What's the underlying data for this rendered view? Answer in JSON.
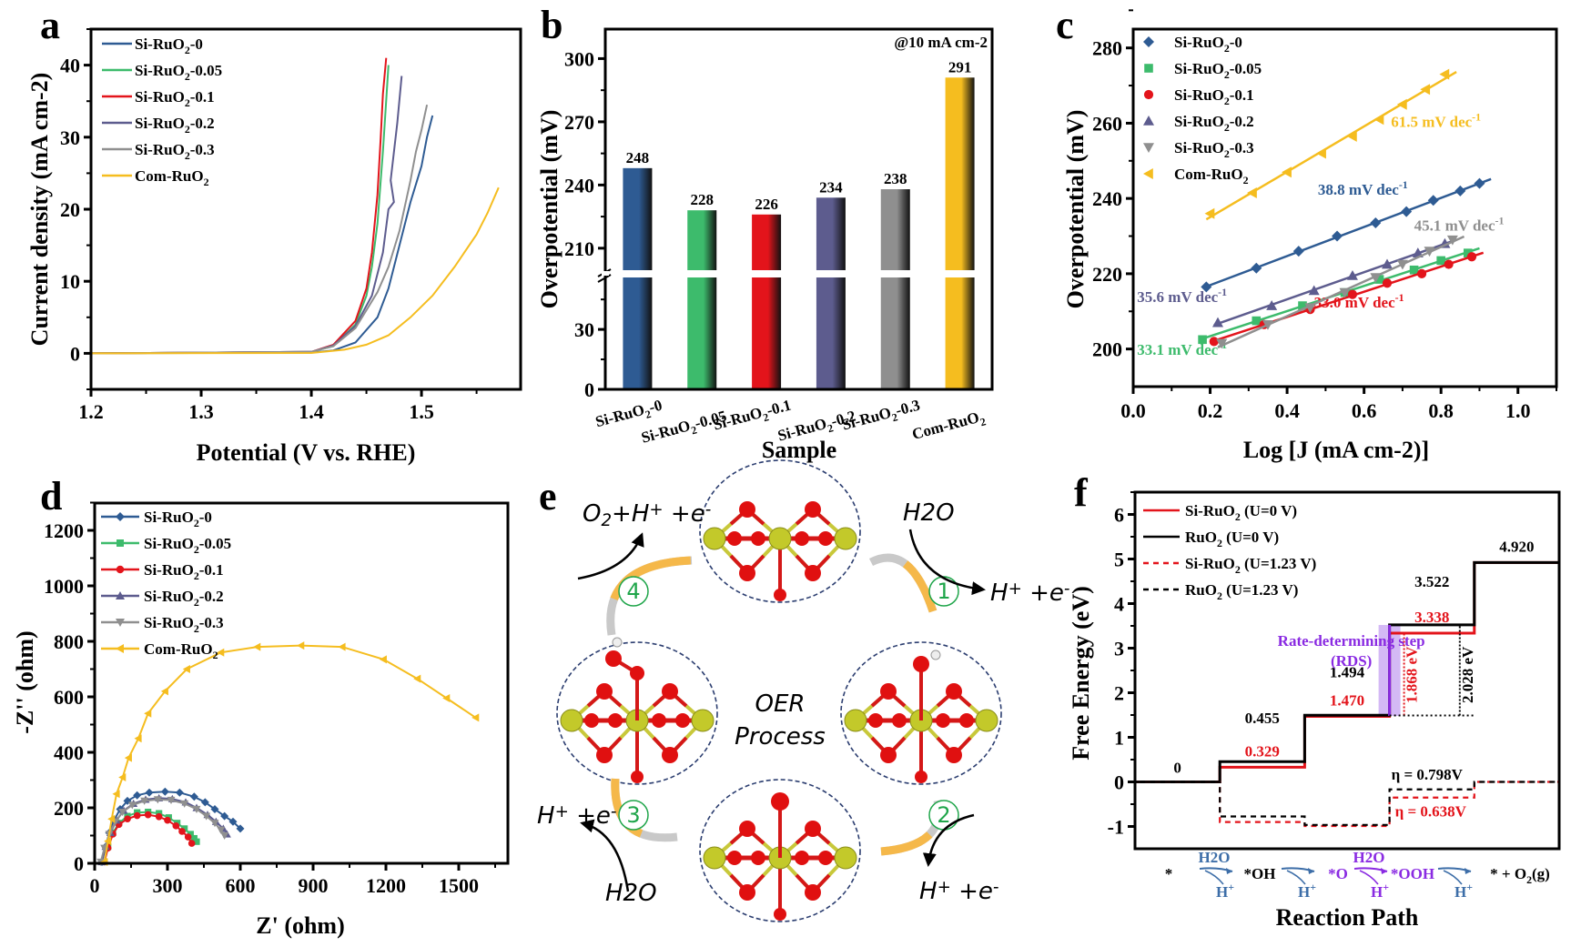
{
  "figure": {
    "panels": [
      "a",
      "b",
      "c",
      "d",
      "e",
      "f"
    ]
  },
  "series_colors": {
    "Si-RuO2-0": "#2e5b93",
    "Si-RuO2-0.05": "#3dbb6c",
    "Si-RuO2-0.1": "#e3141b",
    "Si-RuO2-0.2": "#5d5c8e",
    "Si-RuO2-0.3": "#8f8f8f",
    "Com-RuO2": "#f5bd1f"
  },
  "chart_data": [
    {
      "id": "a",
      "type": "line",
      "panel_label": "a",
      "title": "",
      "xlabel": "Potential (V vs. RHE)",
      "ylabel": "Current density (mA cm-2)",
      "xlim": [
        1.2,
        1.59
      ],
      "ylim": [
        -5,
        45
      ],
      "xticks": [
        "1.2",
        "1.3",
        "1.4",
        "1.5"
      ],
      "xtick_values": [
        1.2,
        1.3,
        1.4,
        1.5
      ],
      "yticks": [
        "0",
        "10",
        "20",
        "30",
        "40"
      ],
      "ytick_values": [
        0,
        10,
        20,
        30,
        40
      ],
      "legend": "top-left",
      "series": [
        {
          "name": "Si-RuO2-0",
          "x": [
            1.2,
            1.4,
            1.42,
            1.44,
            1.46,
            1.47,
            1.48,
            1.49,
            1.5,
            1.505,
            1.51
          ],
          "y": [
            0,
            0.1,
            0.4,
            1.5,
            5,
            9,
            15,
            21,
            26,
            30,
            33
          ]
        },
        {
          "name": "Si-RuO2-0.05",
          "x": [
            1.2,
            1.4,
            1.42,
            1.44,
            1.45,
            1.455,
            1.46,
            1.465,
            1.47
          ],
          "y": [
            0,
            0.2,
            1,
            4,
            8,
            12,
            18,
            28,
            40
          ]
        },
        {
          "name": "Si-RuO2-0.1",
          "x": [
            1.2,
            1.4,
            1.42,
            1.44,
            1.45,
            1.455,
            1.46,
            1.463,
            1.465,
            1.468
          ],
          "y": [
            0,
            0.2,
            1.2,
            4.5,
            9,
            14,
            22,
            30,
            36,
            41
          ]
        },
        {
          "name": "Si-RuO2-0.2",
          "x": [
            1.2,
            1.4,
            1.42,
            1.44,
            1.455,
            1.465,
            1.47,
            1.475,
            1.472,
            1.478,
            1.482
          ],
          "y": [
            0,
            0.2,
            1.1,
            3.8,
            8,
            14,
            20,
            21,
            24,
            32,
            38.5
          ]
        },
        {
          "name": "Si-RuO2-0.3",
          "x": [
            1.2,
            1.4,
            1.42,
            1.44,
            1.46,
            1.47,
            1.48,
            1.49,
            1.495,
            1.5,
            1.505
          ],
          "y": [
            0,
            0.2,
            1.0,
            3.5,
            8.5,
            12,
            17,
            24,
            28,
            31,
            34.5
          ]
        },
        {
          "name": "Com-RuO2",
          "x": [
            1.2,
            1.4,
            1.43,
            1.45,
            1.47,
            1.49,
            1.51,
            1.53,
            1.55,
            1.56,
            1.57
          ],
          "y": [
            0,
            0.05,
            0.5,
            1.2,
            2.5,
            5,
            8,
            12,
            16.5,
            19.5,
            23
          ]
        }
      ]
    },
    {
      "id": "b",
      "type": "bar",
      "panel_label": "b",
      "title": "",
      "annotation": "@10 mA cm-2",
      "xlabel": "Sample",
      "ylabel": "Overpotential (mV)",
      "categories": [
        "Si-RuO2-0",
        "Si-RuO2-0.05",
        "Si-RuO2-0.1",
        "Si-RuO2-0.2",
        "Si-RuO2-0.3",
        "Com-RuO2"
      ],
      "values": [
        248,
        228,
        226,
        234,
        238,
        291
      ],
      "data_labels": [
        "248",
        "228",
        "226",
        "234",
        "238",
        "291"
      ],
      "y_break": [
        56,
        200
      ],
      "ylim": [
        0,
        314
      ],
      "yticks": [
        "0",
        "30",
        "210",
        "240",
        "270",
        "300"
      ],
      "ytick_values": [
        0,
        30,
        210,
        240,
        270,
        300
      ]
    },
    {
      "id": "c",
      "type": "scatter",
      "panel_label": "c",
      "title": "",
      "xlabel": "Log [J (mA cm-2)]",
      "ylabel": "Overpotential (mV)",
      "xlim": [
        0.0,
        1.1
      ],
      "ylim": [
        190,
        285
      ],
      "xticks": [
        "0.0",
        "0.2",
        "0.4",
        "0.6",
        "0.8",
        "1.0"
      ],
      "xtick_values": [
        0.0,
        0.2,
        0.4,
        0.6,
        0.8,
        1.0
      ],
      "yticks": [
        "200",
        "220",
        "240",
        "260",
        "280"
      ],
      "ytick_values": [
        200,
        220,
        240,
        260,
        280
      ],
      "legend": "top-left",
      "series": [
        {
          "name": "Si-RuO2-0",
          "marker": "diamond",
          "slope_label": "38.8 mV dec-1",
          "x": [
            0.19,
            0.32,
            0.43,
            0.53,
            0.63,
            0.71,
            0.78,
            0.85,
            0.9
          ],
          "y": [
            216.5,
            221.5,
            226,
            230,
            233.5,
            236.5,
            239.5,
            242,
            244
          ]
        },
        {
          "name": "Si-RuO2-0.05",
          "marker": "square",
          "slope_label": "33.1 mV dec-1",
          "x": [
            0.18,
            0.32,
            0.44,
            0.55,
            0.64,
            0.73,
            0.8,
            0.87
          ],
          "y": [
            202.5,
            207.5,
            211.5,
            215,
            218.5,
            221,
            223.5,
            225.5
          ]
        },
        {
          "name": "Si-RuO2-0.1",
          "marker": "circle",
          "slope_label": "33.0 mV dec-1",
          "x": [
            0.21,
            0.34,
            0.46,
            0.57,
            0.66,
            0.75,
            0.82,
            0.88
          ],
          "y": [
            202,
            206.5,
            210.5,
            214.5,
            217.5,
            220,
            222.5,
            224.5
          ]
        },
        {
          "name": "Si-RuO2-0.2",
          "marker": "triangle-up",
          "slope_label": "35.6 mV dec-1",
          "x": [
            0.22,
            0.36,
            0.47,
            0.57,
            0.66,
            0.74,
            0.81
          ],
          "y": [
            207,
            211.5,
            215.5,
            219.5,
            222.5,
            225.5,
            228
          ]
        },
        {
          "name": "Si-RuO2-0.3",
          "marker": "triangle-down",
          "slope_label": "45.1 mV dec-1",
          "x": [
            0.23,
            0.35,
            0.46,
            0.55,
            0.63,
            0.7,
            0.77,
            0.83
          ],
          "y": [
            201.5,
            206.5,
            211,
            215,
            219,
            222.5,
            226,
            229
          ]
        },
        {
          "name": "Com-RuO2",
          "marker": "triangle-left",
          "slope_label": "61.5 mV dec-1",
          "x": [
            0.2,
            0.31,
            0.4,
            0.49,
            0.57,
            0.64,
            0.7,
            0.76,
            0.81
          ],
          "y": [
            236,
            241.5,
            247,
            252,
            256.5,
            261,
            265,
            269,
            273
          ]
        }
      ]
    },
    {
      "id": "d",
      "type": "line",
      "panel_label": "d",
      "title": "",
      "xlabel": "Z' (ohm)",
      "ylabel": "-Z'' (ohm)",
      "xlim": [
        0,
        1700
      ],
      "ylim": [
        0,
        1300
      ],
      "xticks": [
        "0",
        "300",
        "600",
        "900",
        "1200",
        "1500"
      ],
      "xtick_values": [
        0,
        300,
        600,
        900,
        1200,
        1500
      ],
      "yticks": [
        "0",
        "200",
        "400",
        "600",
        "800",
        "1000",
        "1200"
      ],
      "ytick_values": [
        0,
        200,
        400,
        600,
        800,
        1000,
        1200
      ],
      "legend": "top-left",
      "series": [
        {
          "name": "Si-RuO2-0",
          "marker": "diamond",
          "x": [
            30,
            45,
            60,
            80,
            105,
            135,
            175,
            225,
            290,
            350,
            410,
            455,
            495,
            535,
            570,
            600
          ],
          "y": [
            5,
            60,
            110,
            155,
            195,
            225,
            245,
            255,
            258,
            255,
            240,
            220,
            195,
            170,
            150,
            125
          ]
        },
        {
          "name": "Si-RuO2-0.05",
          "marker": "square",
          "x": [
            40,
            55,
            75,
            100,
            135,
            175,
            220,
            265,
            305,
            340,
            370,
            395,
            410,
            420
          ],
          "y": [
            5,
            60,
            110,
            145,
            170,
            183,
            185,
            180,
            165,
            145,
            125,
            105,
            90,
            78
          ]
        },
        {
          "name": "Si-RuO2-0.1",
          "marker": "circle",
          "x": [
            40,
            55,
            75,
            100,
            135,
            175,
            220,
            265,
            300,
            335,
            360,
            385,
            400
          ],
          "y": [
            5,
            55,
            105,
            140,
            160,
            172,
            175,
            168,
            155,
            135,
            115,
            95,
            72
          ]
        },
        {
          "name": "Si-RuO2-0.2",
          "marker": "triangle-up",
          "x": [
            30,
            45,
            65,
            90,
            120,
            160,
            210,
            265,
            320,
            375,
            420,
            465,
            500,
            530,
            545
          ],
          "y": [
            5,
            60,
            110,
            155,
            190,
            215,
            230,
            235,
            232,
            220,
            200,
            175,
            150,
            125,
            105
          ]
        },
        {
          "name": "Si-RuO2-0.3",
          "marker": "triangle-down",
          "x": [
            25,
            40,
            60,
            85,
            115,
            155,
            205,
            260,
            315,
            370,
            420,
            460,
            495,
            520,
            535
          ],
          "y": [
            5,
            55,
            105,
            150,
            185,
            210,
            225,
            230,
            228,
            215,
            195,
            170,
            145,
            120,
            100
          ]
        },
        {
          "name": "Com-RuO2",
          "marker": "triangle-left",
          "x": [
            40,
            55,
            70,
            90,
            115,
            140,
            180,
            220,
            290,
            380,
            520,
            670,
            850,
            1020,
            1190,
            1330,
            1450,
            1570
          ],
          "y": [
            5,
            80,
            160,
            250,
            310,
            380,
            450,
            540,
            620,
            700,
            760,
            780,
            785,
            780,
            735,
            665,
            595,
            525
          ]
        }
      ]
    },
    {
      "id": "f",
      "type": "line",
      "panel_label": "f",
      "title": "",
      "xlabel": "Reaction Path",
      "ylabel": "Free Energy (eV)",
      "ylim": [
        -1.5,
        6.5
      ],
      "yticks": [
        "-1",
        "0",
        "1",
        "2",
        "3",
        "4",
        "5",
        "6"
      ],
      "ytick_values": [
        -1,
        0,
        1,
        2,
        3,
        4,
        5,
        6
      ],
      "legend": "top-left",
      "steps": [
        "*",
        "*OH",
        "*O",
        "*OOH",
        "* + O2(g)"
      ],
      "series": [
        {
          "name": "Si-RuO2 (U=0 V)",
          "style": "solid",
          "color": "#e3141b",
          "values": [
            0,
            0.329,
            1.47,
            3.338,
            4.92
          ]
        },
        {
          "name": "RuO2 (U=0 V)",
          "style": "solid",
          "color": "#000000",
          "values": [
            0,
            0.455,
            1.494,
            3.522,
            4.92
          ]
        },
        {
          "name": "Si-RuO2 (U=1.23 V)",
          "style": "dashed",
          "color": "#e3141b",
          "values": [
            0,
            -0.901,
            -0.99,
            -0.352,
            0
          ]
        },
        {
          "name": "RuO2 (U=1.23 V)",
          "style": "dashed",
          "color": "#000000",
          "values": [
            0,
            -0.775,
            -0.966,
            -0.168,
            0
          ]
        }
      ],
      "value_labels": {
        "zero": "0",
        "ruo2": [
          "0.455",
          "1.494",
          "3.522",
          "4.920"
        ],
        "siruo2": [
          "0.329",
          "1.470",
          "3.338"
        ]
      },
      "rds_label_1": "Rate-determining step",
      "rds_label_2": "(RDS)",
      "gap_si": "1.868 eV",
      "gap_ruo2": "2.028 eV",
      "eta_ruo2": "η = 0.798V",
      "eta_si": "η = 0.638V",
      "path_sub": {
        "h2o": "H2O",
        "hplus": "H+"
      }
    }
  ],
  "panel_e": {
    "label": "e",
    "center_text_1": "OER",
    "center_text_2": "Process",
    "steps": [
      "①",
      "②",
      "③",
      "④"
    ],
    "labels": {
      "top_left": "O2+H+ +e-",
      "top_right_in": "H2O",
      "right_out": "H+ +e-",
      "bottom_right_out": "H+ +e-",
      "bottom_left_in": "H2O",
      "left_out": "H+ +e-"
    }
  }
}
